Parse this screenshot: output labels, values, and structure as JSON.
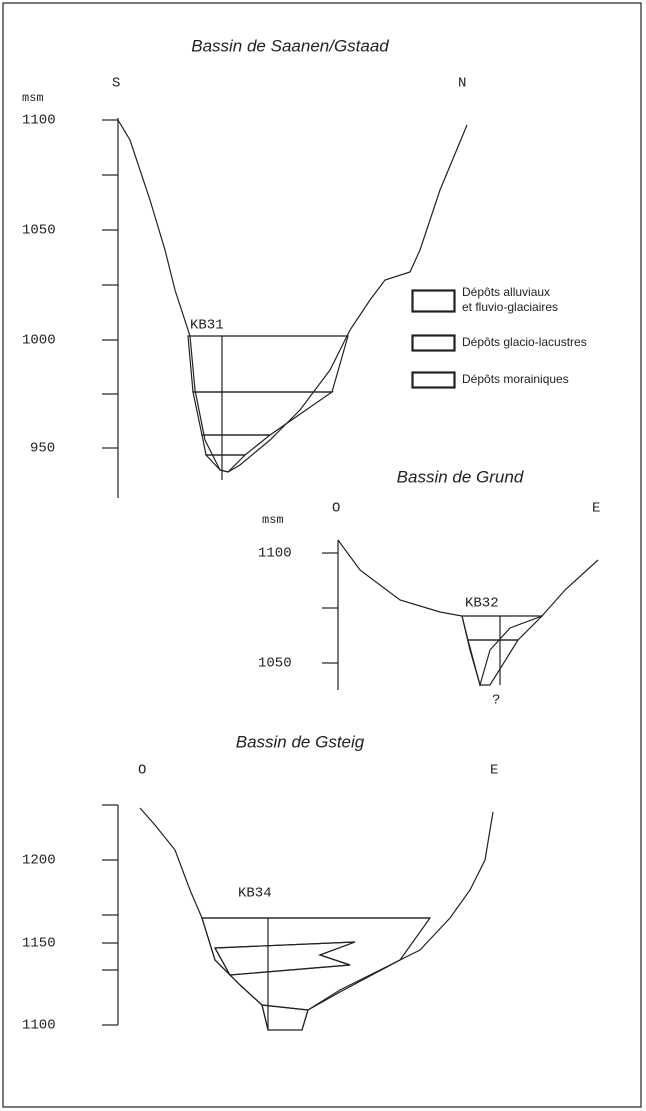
{
  "sections": [
    {
      "title": "Bassin de Saanen/Gstaad",
      "left": "S",
      "right": "N",
      "unit": "msm",
      "ticks": [
        "1100",
        "1050",
        "1000",
        "950"
      ],
      "borehole": "KB31"
    },
    {
      "title": "Bassin de Grund",
      "left": "O",
      "right": "E",
      "unit": "msm",
      "ticks": [
        "1100",
        "1050"
      ],
      "borehole": "KB32",
      "note": "?"
    },
    {
      "title": "Bassin de Gsteig",
      "left": "O",
      "right": "E",
      "ticks": [
        "1200",
        "1150",
        "1100"
      ],
      "borehole": "KB34"
    }
  ],
  "legend": [
    {
      "label": "Dépôts alluviaux\net fluvio-glaciaires"
    },
    {
      "label": "Dépôts glacio-lacustres"
    },
    {
      "label": "Dépôts morainiques"
    }
  ]
}
